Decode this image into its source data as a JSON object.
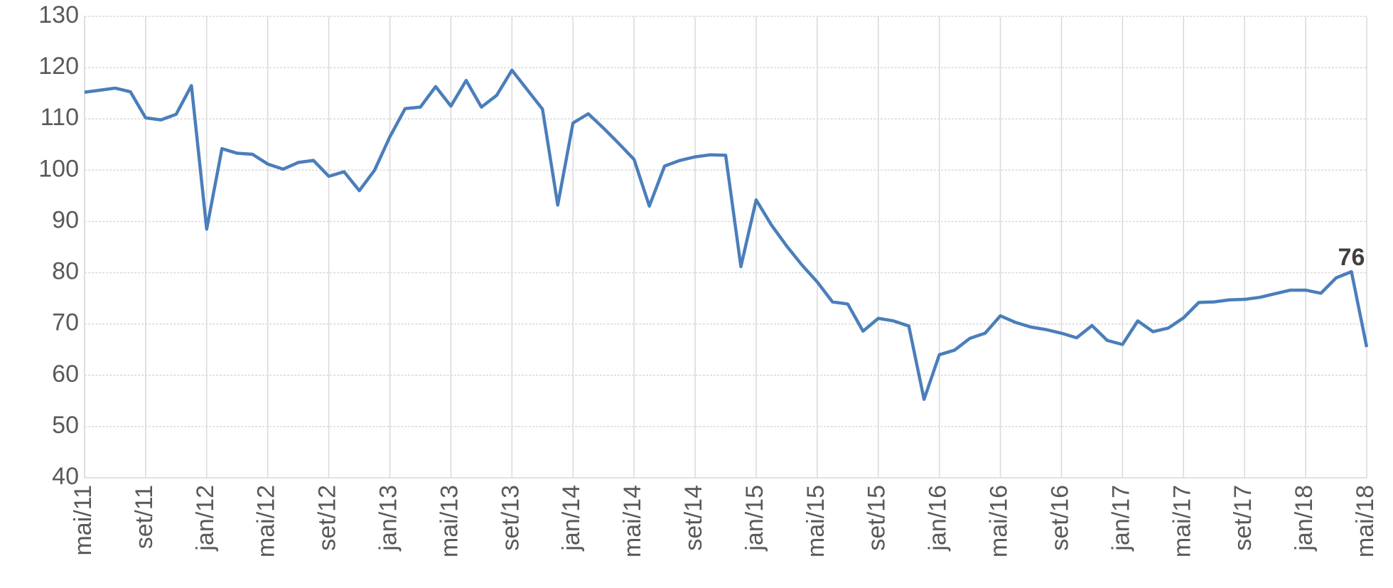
{
  "chart_data": {
    "type": "line",
    "categories": [
      "mai/11",
      null,
      null,
      null,
      "set/11",
      null,
      null,
      null,
      "jan/12",
      null,
      null,
      null,
      "mai/12",
      null,
      null,
      null,
      "set/12",
      null,
      null,
      null,
      "jan/13",
      null,
      null,
      null,
      "mai/13",
      null,
      null,
      null,
      "set/13",
      null,
      null,
      null,
      "jan/14",
      null,
      null,
      null,
      "mai/14",
      null,
      null,
      null,
      "set/14",
      null,
      null,
      null,
      "jan/15",
      null,
      null,
      null,
      "mai/15",
      null,
      null,
      null,
      "set/15",
      null,
      null,
      null,
      "jan/16",
      null,
      null,
      null,
      "mai/16",
      null,
      null,
      null,
      "set/16",
      null,
      null,
      null,
      "jan/17",
      null,
      null,
      null,
      "mai/17",
      null,
      null,
      null,
      "set/17",
      null,
      null,
      null,
      "jan/18",
      null,
      null,
      null,
      "mai/18"
    ],
    "values": [
      115.2,
      115.6,
      116.0,
      115.3,
      110.2,
      109.8,
      110.9,
      116.5,
      88.5,
      104.2,
      103.3,
      103.1,
      101.2,
      100.2,
      101.5,
      101.9,
      98.8,
      99.7,
      96.0,
      100.0,
      106.5,
      112.0,
      112.3,
      116.3,
      112.5,
      117.5,
      112.3,
      114.6,
      119.5,
      115.7,
      111.9,
      93.2,
      109.2,
      111.0,
      108.2,
      105.2,
      102.1,
      93.0,
      100.8,
      101.9,
      102.6,
      103.0,
      102.9,
      81.2,
      94.2,
      89.3,
      85.2,
      81.5,
      78.2,
      74.3,
      73.9,
      68.6,
      71.1,
      70.6,
      69.6,
      55.3,
      64.0,
      64.9,
      67.2,
      68.2,
      71.6,
      70.3,
      69.4,
      68.9,
      68.2,
      67.3,
      69.7,
      66.8,
      66.0,
      70.6,
      68.5,
      69.2,
      71.2,
      74.2,
      74.3,
      74.7,
      74.8,
      75.2,
      75.9,
      76.6,
      76.6,
      76.0,
      79.0,
      80.2,
      65.5
    ],
    "color": "#4a7ebb",
    "annotation": "76",
    "ylim": [
      40,
      130
    ],
    "yticks": [
      40,
      50,
      60,
      70,
      80,
      90,
      100,
      110,
      120,
      130
    ],
    "grid": true
  }
}
